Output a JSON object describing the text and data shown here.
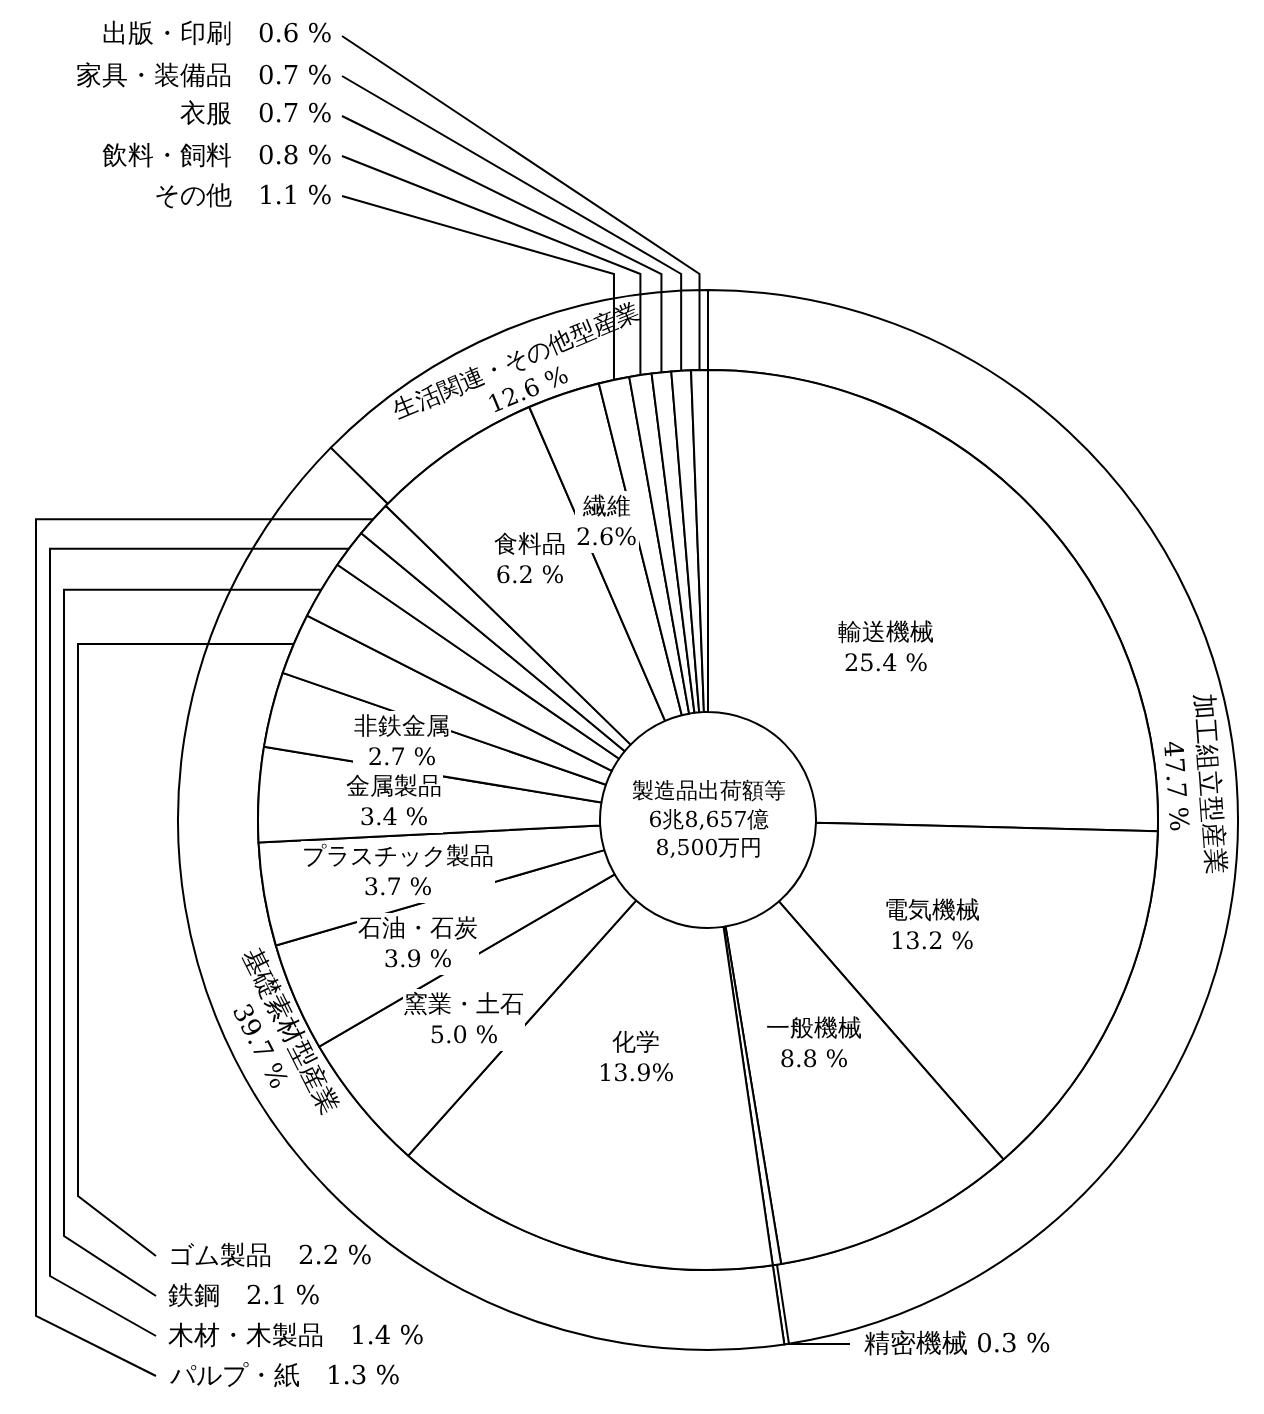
{
  "chart_data": [
    {
      "type": "donut",
      "title": "製造品出荷額等\n6兆8,657億\n8,500万円",
      "categories": [
        "輸送機械",
        "電気機械",
        "一般機械",
        "精密機械",
        "化学",
        "窯業・土石",
        "石油・石炭",
        "プラスチック製品",
        "金属製品",
        "非鉄金属",
        "ゴム製品",
        "鉄鋼",
        "木材・木製品",
        "パルプ・紙",
        "食料品",
        "繊維",
        "その他",
        "飲料・飼料",
        "衣服",
        "家具・装備品",
        "出版・印刷"
      ],
      "values": [
        25.4,
        13.2,
        8.8,
        0.3,
        13.9,
        5.0,
        3.9,
        3.7,
        3.4,
        2.7,
        2.2,
        2.1,
        1.4,
        1.3,
        6.2,
        2.6,
        1.1,
        0.8,
        0.7,
        0.7,
        0.6
      ],
      "value_labels": [
        "25.4 %",
        "13.2 %",
        "8.8 %",
        "0.3 %",
        "13.9%",
        "5.0 %",
        "3.9 %",
        "3.7 %",
        "3.4 %",
        "2.7 %",
        "2.2 %",
        "2.1 %",
        "1.4 %",
        "1.3 %",
        "6.2 %",
        "2.6%",
        "1.1 %",
        "0.8 %",
        "0.7 %",
        "0.7 %",
        "0.6 %"
      ],
      "colors": [
        "#ffffff",
        "#ffffff",
        "#ffffff",
        "#ffffff",
        "#ffffff",
        "#ffffff",
        "#ffffff",
        "#ffffff",
        "#ffffff",
        "#ffffff",
        "#ffffff",
        "#ffffff",
        "#ffffff",
        "#ffffff",
        "#ffffff",
        "#ffffff",
        "#ffffff",
        "#ffffff",
        "#ffffff",
        "#ffffff",
        "#ffffff"
      ]
    },
    {
      "type": "donut",
      "categories": [
        "加工組立型産業",
        "基礎素材型産業",
        "生活関連・その他型産業"
      ],
      "values": [
        47.7,
        39.7,
        12.6
      ],
      "value_labels": [
        "47.7 %",
        "39.7 %",
        "12.6 %"
      ],
      "colors": [
        "#ffffff",
        "#ffffff",
        "#ffffff"
      ]
    }
  ]
}
